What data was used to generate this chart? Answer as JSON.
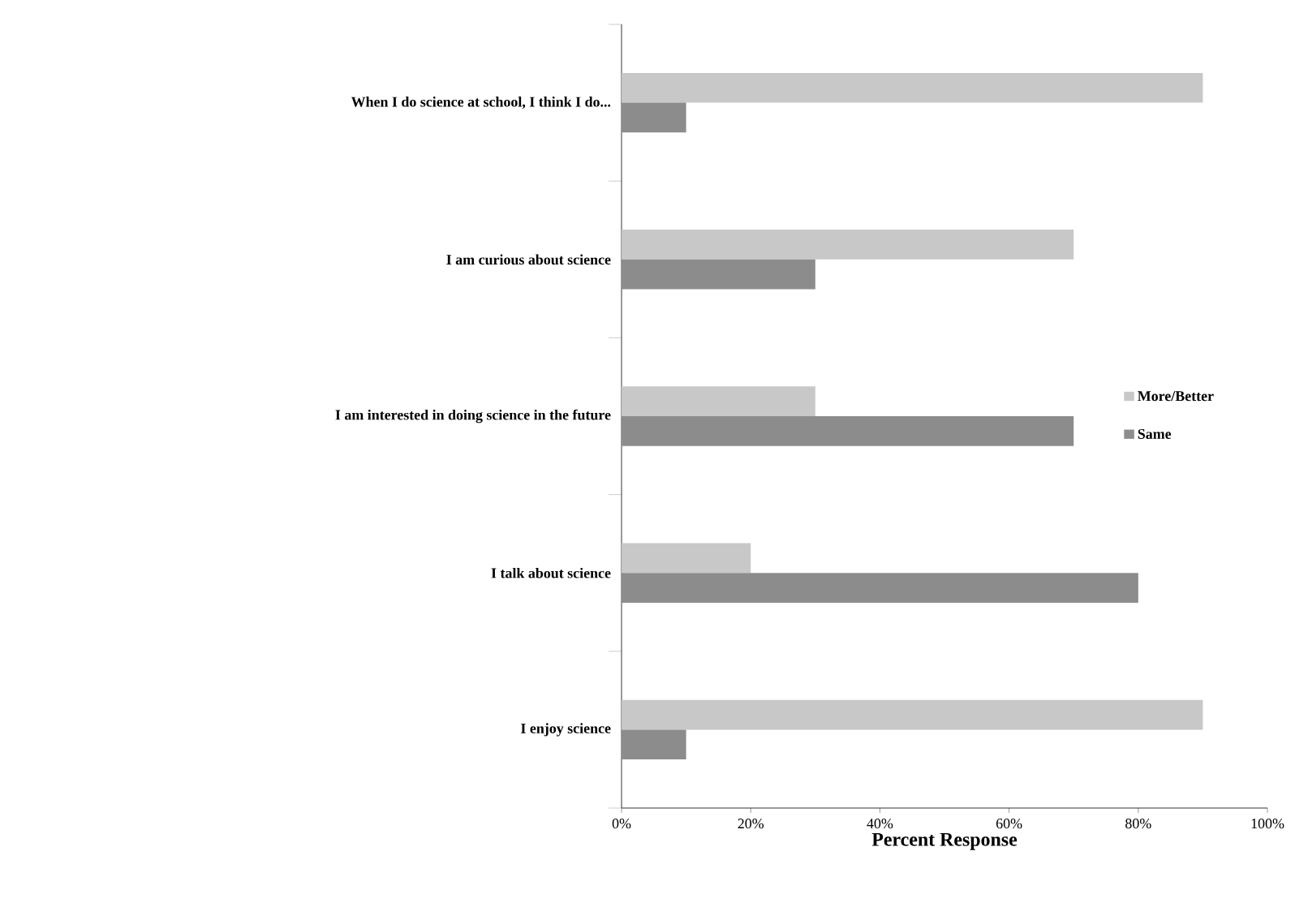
{
  "chart_data": {
    "type": "bar",
    "orientation": "horizontal",
    "xlabel": "Percent Response",
    "categories": [
      "When I do science at school, I think I do...",
      "I am curious about science",
      "I am interested in doing science in the future",
      "I talk about science",
      "I enjoy science"
    ],
    "series": [
      {
        "name": "More/Better",
        "color": "#c8c8c8",
        "values": [
          90,
          70,
          30,
          20,
          90
        ]
      },
      {
        "name": "Same",
        "color": "#8c8c8c",
        "values": [
          10,
          30,
          70,
          80,
          10
        ]
      }
    ],
    "xlim": [
      0,
      100
    ],
    "xticks": [
      {
        "value": 0,
        "label": "0%"
      },
      {
        "value": 20,
        "label": "20%"
      },
      {
        "value": 40,
        "label": "40%"
      },
      {
        "value": 60,
        "label": "60%"
      },
      {
        "value": 80,
        "label": "80%"
      },
      {
        "value": 100,
        "label": "100%"
      }
    ],
    "legend": "right",
    "grid": false
  }
}
